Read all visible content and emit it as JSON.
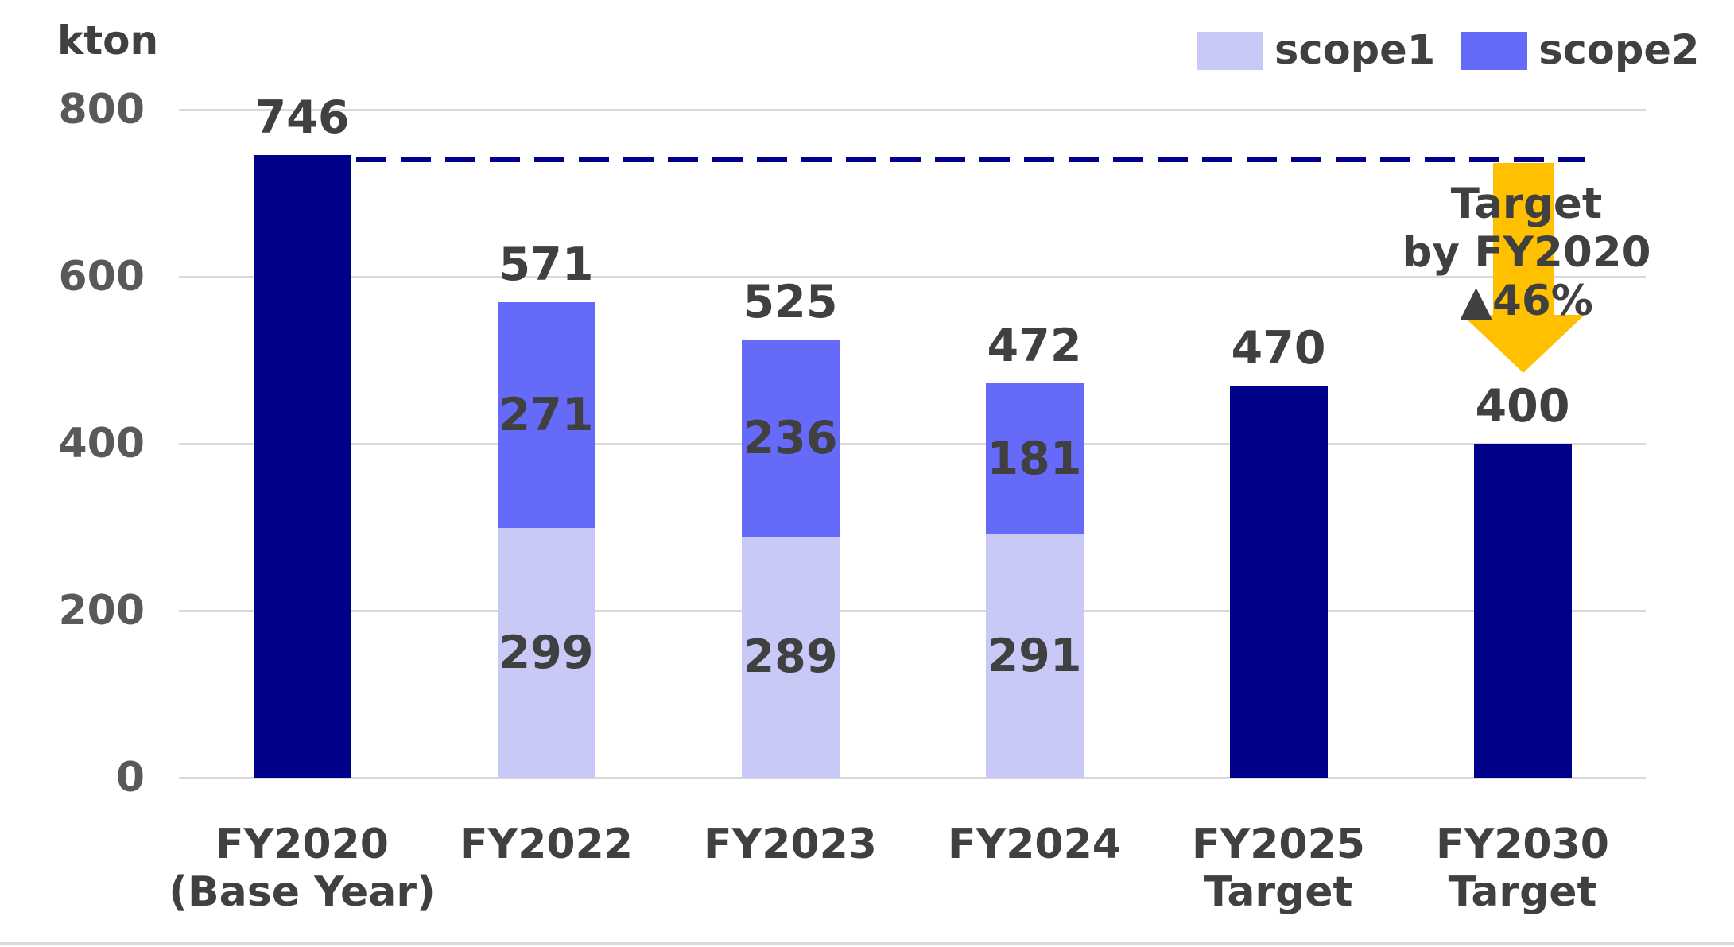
{
  "chart_data": {
    "type": "bar",
    "stacked": true,
    "ylabel": "kton",
    "ylim": [
      0,
      800
    ],
    "yticks": [
      800,
      600,
      400,
      200,
      0
    ],
    "grid": true,
    "legend": {
      "position": "top-right",
      "items": [
        {
          "name": "scope1",
          "color": "#C9C9F8"
        },
        {
          "name": "scope2",
          "color": "#666AF9"
        }
      ]
    },
    "colors": {
      "navy": "#00008B",
      "scope1": "#C9C9F8",
      "scope2": "#666AF9",
      "arrow": "#FFC000",
      "grid": "#D9D9D9"
    },
    "categories": [
      "FY2020 (Base Year)",
      "FY2022",
      "FY2023",
      "FY2024",
      "FY2025 Target",
      "FY2030 Target"
    ],
    "bars": [
      {
        "category_lines": [
          "FY2020",
          "(Base Year)"
        ],
        "total": 746,
        "segments": [
          {
            "color": "navy",
            "value": 746
          }
        ]
      },
      {
        "category_lines": [
          "FY2022"
        ],
        "total": 571,
        "segments": [
          {
            "color": "scope1",
            "value": 299,
            "label": "299"
          },
          {
            "color": "scope2",
            "value": 271,
            "label": "271"
          }
        ]
      },
      {
        "category_lines": [
          "FY2023"
        ],
        "total": 525,
        "segments": [
          {
            "color": "scope1",
            "value": 289,
            "label": "289"
          },
          {
            "color": "scope2",
            "value": 236,
            "label": "236"
          }
        ]
      },
      {
        "category_lines": [
          "FY2024"
        ],
        "total": 472,
        "segments": [
          {
            "color": "scope1",
            "value": 291,
            "label": "291"
          },
          {
            "color": "scope2",
            "value": 181,
            "label": "181"
          }
        ]
      },
      {
        "category_lines": [
          "FY2025",
          "Target"
        ],
        "total": 470,
        "segments": [
          {
            "color": "navy",
            "value": 470
          }
        ]
      },
      {
        "category_lines": [
          "FY2030",
          "Target"
        ],
        "total": 400,
        "segments": [
          {
            "color": "navy",
            "value": 400
          }
        ]
      }
    ],
    "reference_line": {
      "value": 746,
      "style": "dashed",
      "color": "#00008B"
    },
    "annotation": {
      "lines": [
        "Target",
        "by FY2020",
        "▲46%"
      ],
      "arrow": "down",
      "arrow_color": "#FFC000"
    }
  }
}
